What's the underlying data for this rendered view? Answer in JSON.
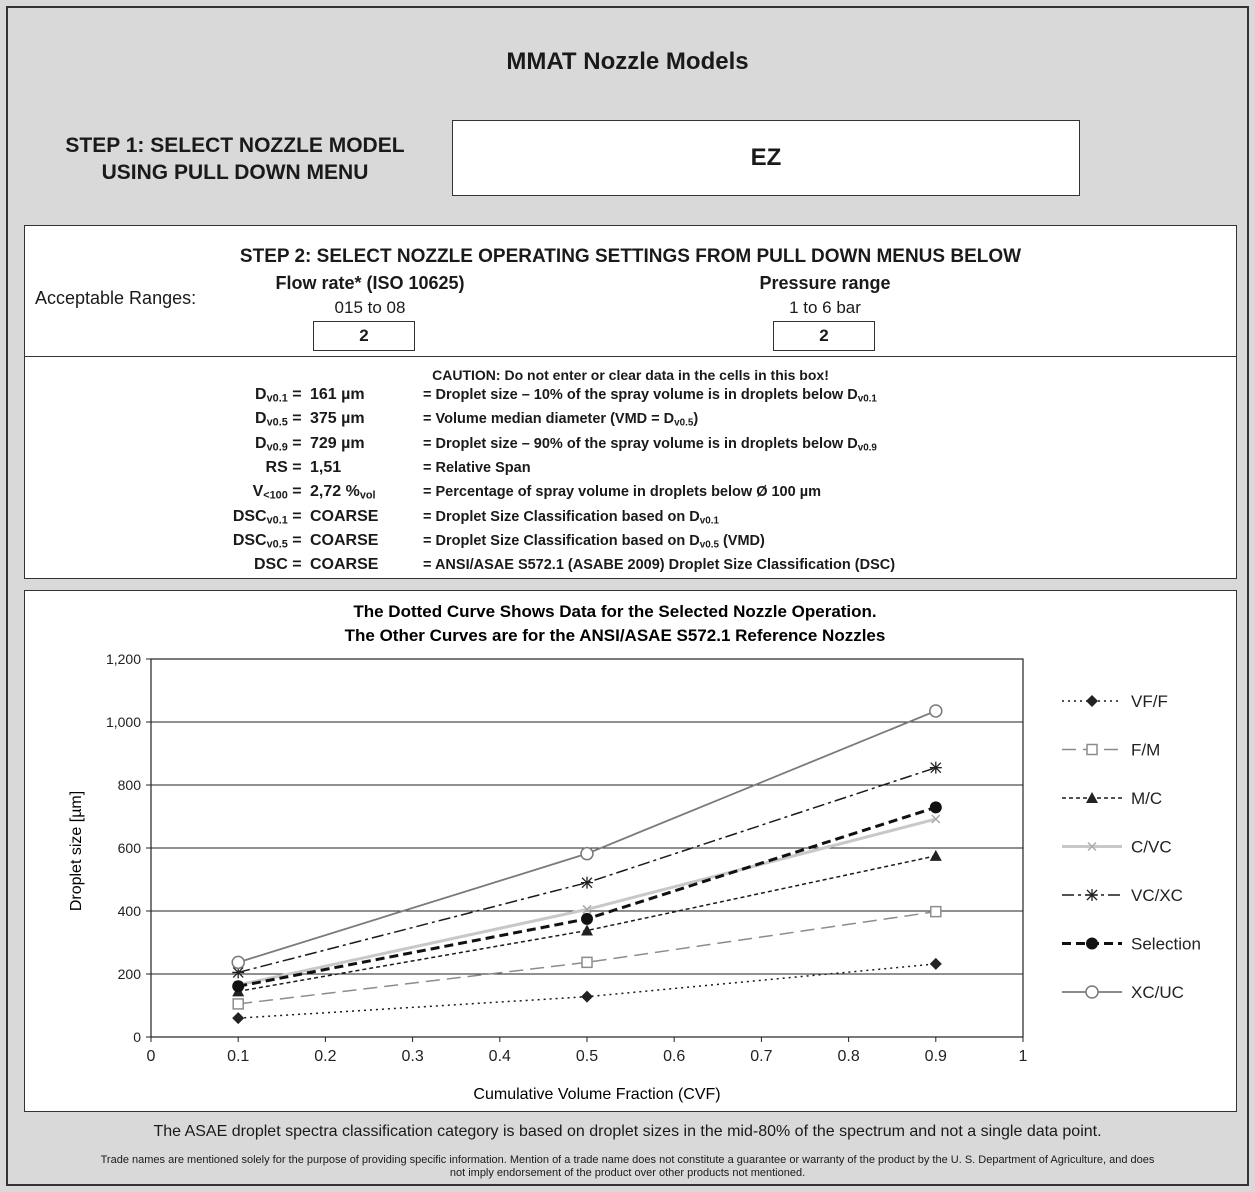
{
  "app": {
    "title": "MMAT Nozzle Models"
  },
  "step1": {
    "label_line1": "STEP 1: SELECT NOZZLE MODEL",
    "label_line2": "USING PULL DOWN MENU",
    "selected_model": "EZ"
  },
  "step2": {
    "title": "STEP 2: SELECT NOZZLE OPERATING SETTINGS FROM PULL DOWN MENUS BELOW",
    "acceptable_ranges_label": "Acceptable Ranges:",
    "flow_rate": {
      "title": "Flow rate* (ISO 10625)",
      "range": "015 to 08",
      "value": "2"
    },
    "pressure": {
      "title": "Pressure range",
      "range": "1 to 6 bar",
      "value": "2"
    }
  },
  "results": {
    "caution": "CAUTION: Do not enter or clear data in the cells in this box!",
    "rows": [
      {
        "sym": "D",
        "sub": "v0.1",
        "eq": " = ",
        "value": "161 µm",
        "desc": "= Droplet size – 10% of the spray volume is in droplets below D",
        "desc_sub": "v0.1",
        "desc_tail": ""
      },
      {
        "sym": "D",
        "sub": "v0.5",
        "eq": " = ",
        "value": "375 µm",
        "desc": "= Volume median diameter (VMD = D",
        "desc_sub": "v0.5",
        "desc_tail": ")"
      },
      {
        "sym": "D",
        "sub": "v0.9",
        "eq": " = ",
        "value": "729 µm",
        "desc": "= Droplet size – 90% of the spray volume is in droplets below D",
        "desc_sub": "v0.9",
        "desc_tail": ""
      },
      {
        "sym": "RS",
        "sub": "",
        "eq": " = ",
        "value": "1,51",
        "desc": "= Relative Span",
        "desc_sub": "",
        "desc_tail": ""
      },
      {
        "sym": "V",
        "sub": "<100",
        "eq": " = ",
        "value": "2,72 %",
        "value_sub": "vol",
        "desc": "= Percentage of spray volume in droplets below Ø 100 µm",
        "desc_sub": "",
        "desc_tail": ""
      },
      {
        "sym": "DSC",
        "sub": "v0.1",
        "eq": " = ",
        "value": "COARSE",
        "desc": "= Droplet Size Classification based on D",
        "desc_sub": "v0.1",
        "desc_tail": ""
      },
      {
        "sym": "DSC",
        "sub": "v0.5",
        "eq": " = ",
        "value": "COARSE",
        "desc": "= Droplet Size Classification based on D",
        "desc_sub": "v0.5",
        "desc_tail": " (VMD)"
      },
      {
        "sym": "DSC",
        "sub": "",
        "eq": " = ",
        "value": "COARSE",
        "desc": "= ANSI/ASAE S572.1 (ASABE 2009) Droplet Size Classification (DSC)",
        "desc_sub": "",
        "desc_tail": ""
      }
    ]
  },
  "chart_data": {
    "type": "line",
    "title_line1": "The Dotted Curve Shows Data for the Selected Nozzle Operation.",
    "title_line2": "The Other Curves are for the ANSI/ASAE S572.1 Reference Nozzles",
    "xlabel": "Cumulative Volume Fraction (CVF)",
    "ylabel": "Droplet size [µm]",
    "xlim": [
      0,
      1
    ],
    "ylim": [
      0,
      1200
    ],
    "x_ticks": [
      "0",
      "0.1",
      "0.2",
      "0.3",
      "0.4",
      "0.5",
      "0.6",
      "0.7",
      "0.8",
      "0.9",
      "1"
    ],
    "y_ticks": [
      "0",
      "200",
      "400",
      "600",
      "800",
      "1,000",
      "1,200"
    ],
    "grid": "horizontal",
    "legend_position": "right",
    "x": [
      0.1,
      0.5,
      0.9
    ],
    "series": [
      {
        "name": "VF/F",
        "values": [
          60,
          128,
          232
        ],
        "color": "#1a1a1a",
        "dash": "2,4",
        "width": 1.5,
        "marker": "diamond"
      },
      {
        "name": "F/M",
        "values": [
          105,
          237,
          398
        ],
        "color": "#8c8c8c",
        "dash": "14,7",
        "width": 1.5,
        "marker": "square-open"
      },
      {
        "name": "M/C",
        "values": [
          145,
          338,
          575
        ],
        "color": "#1a1a1a",
        "dash": "4,3",
        "width": 1.5,
        "marker": "triangle"
      },
      {
        "name": "C/VC",
        "values": [
          165,
          405,
          692
        ],
        "color": "#c8c8c8",
        "dash": "",
        "width": 3,
        "marker": "x"
      },
      {
        "name": "VC/XC",
        "values": [
          205,
          490,
          855
        ],
        "color": "#1a1a1a",
        "dash": "12,4,3,4",
        "width": 1.5,
        "marker": "star"
      },
      {
        "name": "Selection",
        "values": [
          161,
          375,
          729
        ],
        "color": "#111111",
        "dash": "9,5",
        "width": 3,
        "marker": "circle"
      },
      {
        "name": "XC/UC",
        "values": [
          237,
          582,
          1035
        ],
        "color": "#7a7a7a",
        "dash": "",
        "width": 1.8,
        "marker": "circle-open"
      }
    ]
  },
  "footnotes": {
    "line1": "The ASAE droplet spectra classification category is based on droplet sizes in the mid-80% of the spectrum and not a single data point.",
    "line2": "Trade names are mentioned solely for the purpose of providing specific information.  Mention of a trade name does not constitute a guarantee or warranty of the product by the U. S. Department of Agriculture, and does not imply endorsement of the product over other products not mentioned."
  }
}
